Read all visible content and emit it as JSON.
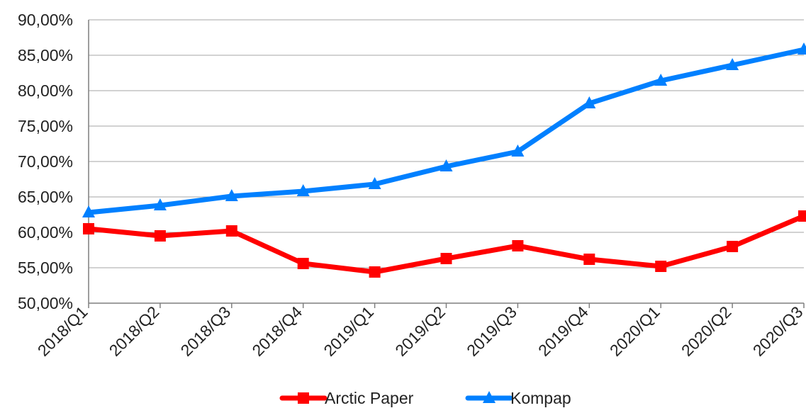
{
  "chart_data": {
    "type": "line",
    "title": "",
    "xlabel": "",
    "ylabel": "",
    "categories": [
      "2018/Q1",
      "2018/Q2",
      "2018/Q3",
      "2018/Q4",
      "2019/Q1",
      "2019/Q2",
      "2019/Q3",
      "2019/Q4",
      "2020/Q1",
      "2020/Q2",
      "2020/Q3"
    ],
    "ylim": [
      50,
      90
    ],
    "yticks": [
      50,
      55,
      60,
      65,
      70,
      75,
      80,
      85,
      90
    ],
    "ytick_labels": [
      "50,00%",
      "55,00%",
      "60,00%",
      "65,00%",
      "70,00%",
      "75,00%",
      "80,00%",
      "85,00%",
      "90,00%"
    ],
    "grid": true,
    "legend_position": "bottom",
    "series": [
      {
        "name": "Arctic Paper",
        "color": "#ff0000",
        "marker": "square",
        "values": [
          60.5,
          59.5,
          60.2,
          55.6,
          54.4,
          56.3,
          58.1,
          56.2,
          55.2,
          58.0,
          62.3
        ]
      },
      {
        "name": "Kompap",
        "color": "#0080ff",
        "marker": "triangle",
        "values": [
          62.8,
          63.8,
          65.1,
          65.8,
          66.8,
          69.3,
          71.4,
          78.2,
          81.4,
          83.6,
          85.8
        ]
      }
    ]
  }
}
